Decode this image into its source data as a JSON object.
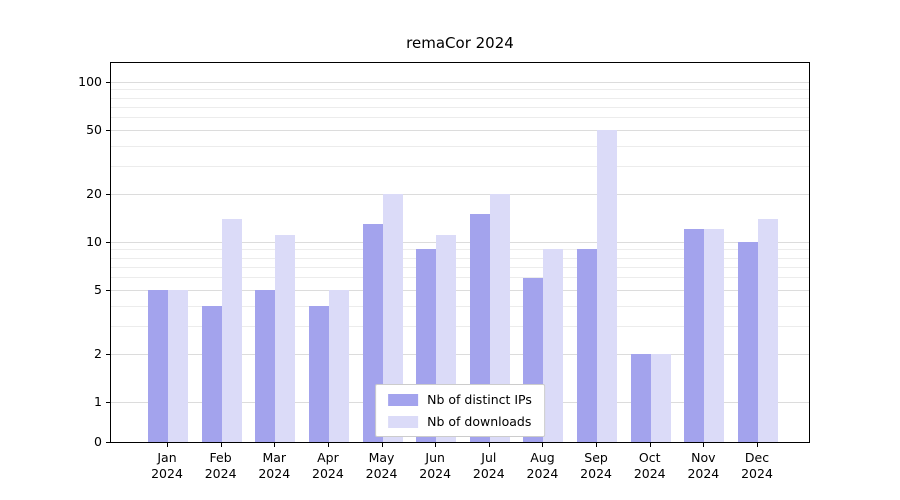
{
  "title": "remaCor 2024",
  "chart_data": {
    "type": "bar",
    "title": "remaCor 2024",
    "categories": [
      "Jan",
      "Feb",
      "Mar",
      "Apr",
      "May",
      "Jun",
      "Jul",
      "Aug",
      "Sep",
      "Oct",
      "Nov",
      "Dec"
    ],
    "year": "2024",
    "series": [
      {
        "name": "Nb of distinct IPs",
        "color": "#a3a3ed",
        "values": [
          5,
          4,
          5,
          4,
          13,
          9,
          15,
          6,
          9,
          2,
          12,
          10
        ]
      },
      {
        "name": "Nb of downloads",
        "color": "#dbdbf8",
        "values": [
          5,
          14,
          11,
          5,
          20,
          11,
          20,
          9,
          50,
          2,
          12,
          14
        ]
      }
    ],
    "yscale": "log",
    "yticks": [
      0,
      1,
      2,
      5,
      10,
      20,
      50,
      100
    ],
    "minor_gridlines": [
      3,
      4,
      6,
      7,
      8,
      9,
      30,
      40,
      60,
      70,
      80,
      90
    ],
    "ylim": [
      0,
      100
    ],
    "xlabel": "",
    "ylabel": "",
    "grid": true,
    "legend_position": "bottom-center"
  }
}
